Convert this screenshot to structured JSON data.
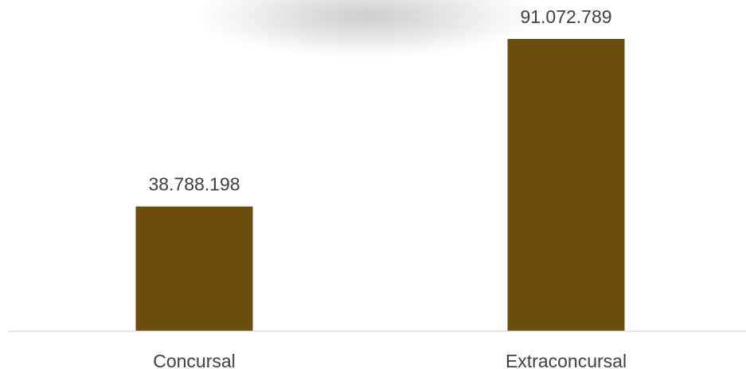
{
  "chart_data": {
    "type": "bar",
    "categories": [
      "Concursal",
      "Extraconcursal"
    ],
    "values": [
      38788198,
      91072789
    ],
    "data_labels": [
      "38.788.198",
      "91.072.789"
    ],
    "title": "",
    "xlabel": "",
    "ylabel": "",
    "ylim": [
      0,
      100000000
    ],
    "grid": false,
    "legend": "none",
    "colors": {
      "bar": "#6b4e0b",
      "axis": "#d9d9d9",
      "label_text": "#404040",
      "category_text": "#404040"
    }
  }
}
